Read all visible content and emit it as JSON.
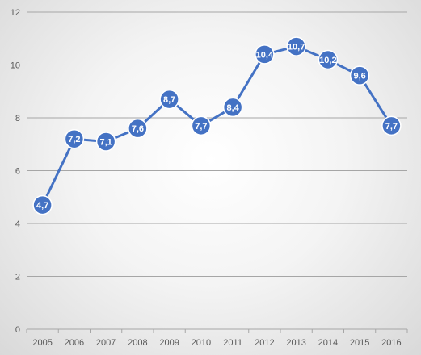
{
  "chart_data": {
    "type": "line",
    "title": "",
    "xlabel": "",
    "ylabel": "",
    "categories": [
      "2005",
      "2006",
      "2007",
      "2008",
      "2009",
      "2010",
      "2011",
      "2012",
      "2013",
      "2014",
      "2015",
      "2016"
    ],
    "series": [
      {
        "values": [
          4.7,
          7.2,
          7.1,
          7.6,
          8.7,
          7.7,
          8.4,
          10.4,
          10.7,
          10.2,
          9.6,
          7.7
        ],
        "labels": [
          "4,7",
          "7,2",
          "7,1",
          "7,6",
          "8,7",
          "7,7",
          "8,4",
          "10,4",
          "10,7",
          "10,2",
          "9,6",
          "7,7"
        ],
        "color": "#4472c4"
      }
    ],
    "ylim": [
      0,
      12
    ],
    "yticks": [
      0,
      2,
      4,
      6,
      8,
      10,
      12
    ],
    "ytick_labels": [
      "0",
      "2",
      "4",
      "6",
      "8",
      "10",
      "12"
    ],
    "grid": true,
    "legend": "none",
    "colors": {
      "line": "#4472c4",
      "marker_fill": "#4472c4",
      "marker_stroke": "#ffffff",
      "grid": "#a6a6a6",
      "axis": "#a6a6a6"
    }
  }
}
